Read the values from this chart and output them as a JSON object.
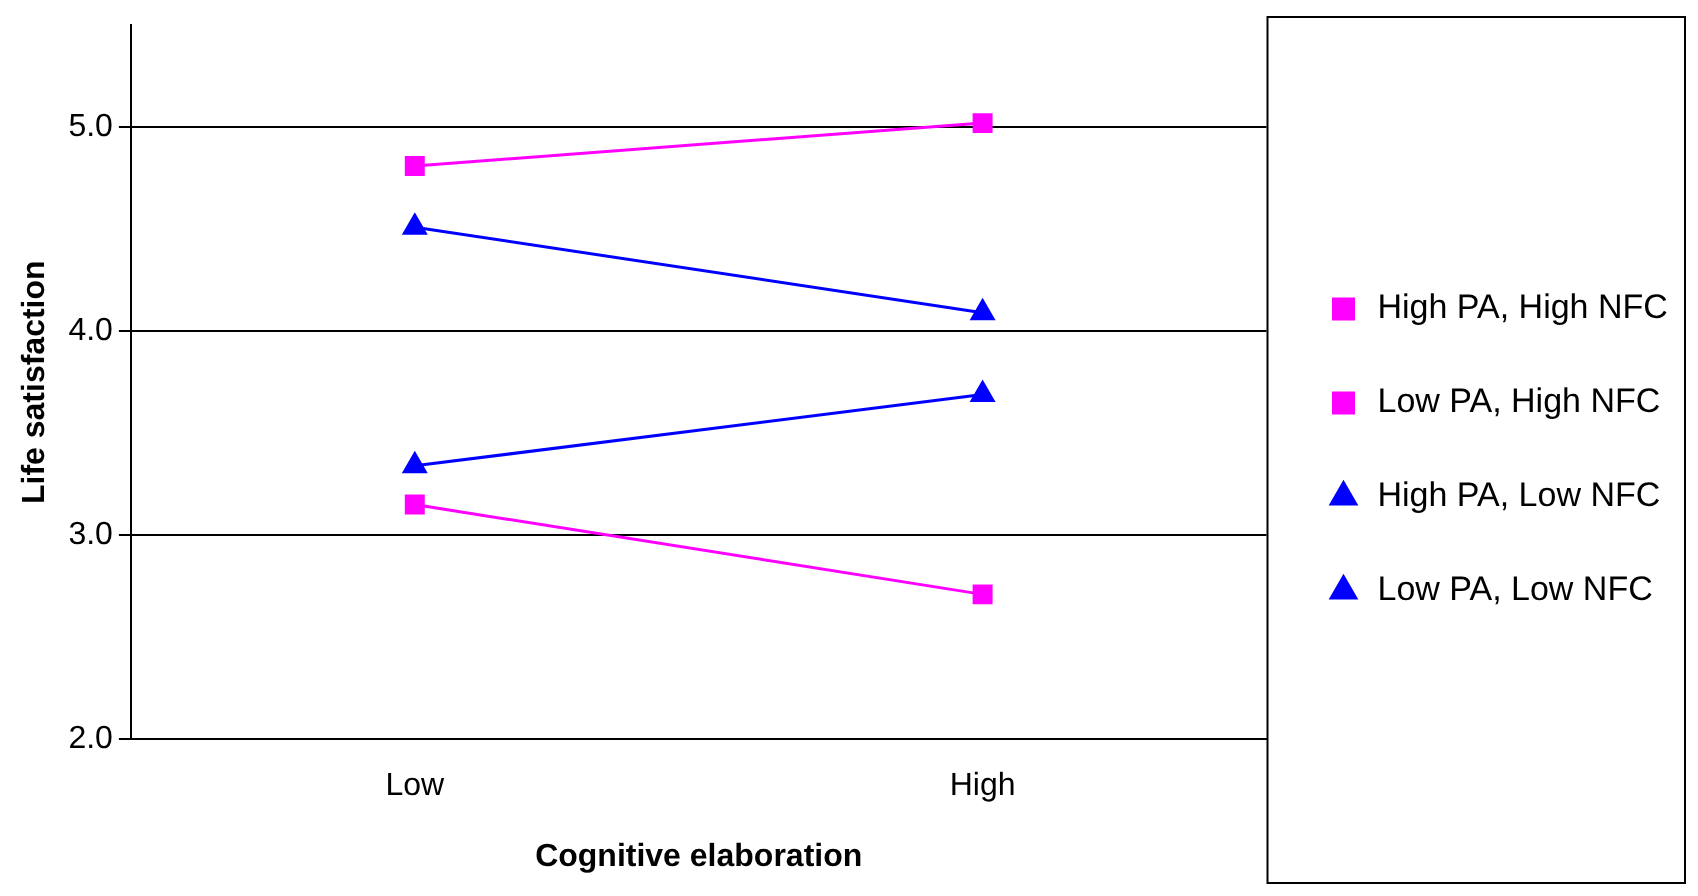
{
  "chart_data": {
    "type": "line",
    "xlabel": "Cognitive elaboration",
    "ylabel": "Life satisfaction",
    "categories": [
      "Low",
      "High"
    ],
    "series": [
      {
        "name": "High PA, High NFC",
        "color": "#ff00ff",
        "marker": "square",
        "values": [
          4.81,
          5.02
        ]
      },
      {
        "name": "Low PA, High NFC",
        "color": "#ff00ff",
        "marker": "square",
        "values": [
          3.15,
          2.71
        ]
      },
      {
        "name": "High PA, Low NFC",
        "color": "#0000ff",
        "marker": "triangle",
        "values": [
          4.51,
          4.09
        ]
      },
      {
        "name": "Low PA, Low NFC",
        "color": "#0000ff",
        "marker": "triangle",
        "values": [
          3.34,
          3.69
        ]
      }
    ],
    "ylim": [
      2,
      5.5
    ],
    "yticks": [
      {
        "value": 2,
        "label": "2.0"
      },
      {
        "value": 3,
        "label": "3.0"
      },
      {
        "value": 4,
        "label": "4.0"
      },
      {
        "value": 5,
        "label": "5.0"
      }
    ],
    "grid": "y",
    "legend": "right",
    "line_style": "solid"
  }
}
